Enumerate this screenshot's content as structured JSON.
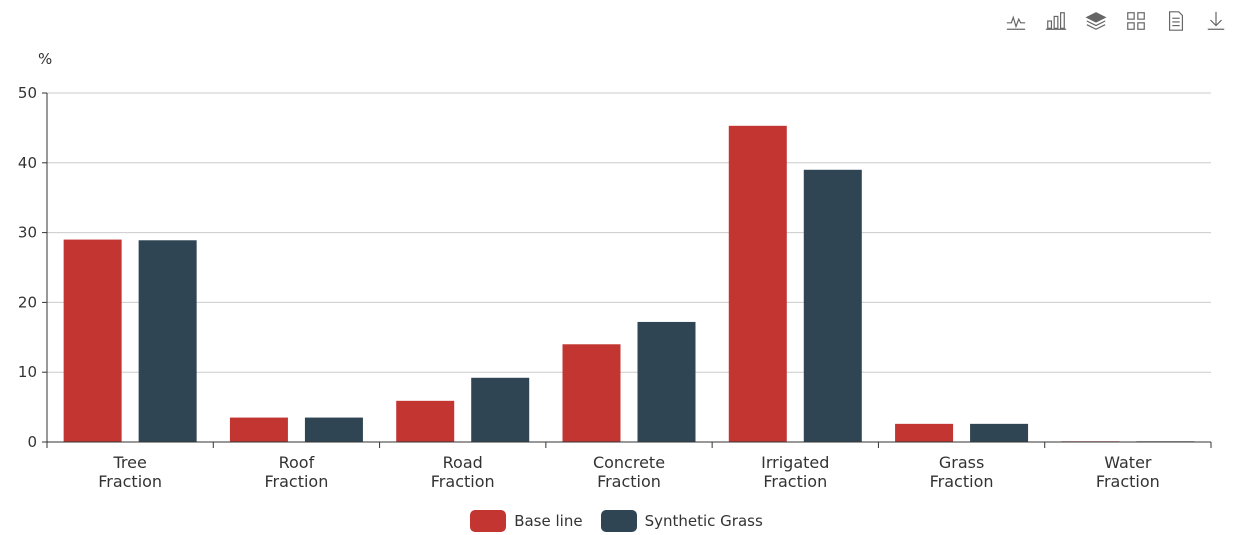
{
  "toolbox": {
    "icons": [
      "line-chart-icon",
      "bar-chart-icon",
      "stack-icon",
      "tiled-icon",
      "data-view-icon",
      "save-image-icon"
    ]
  },
  "colors": {
    "base_line": "#c23531",
    "synthetic_grass": "#2f4554",
    "axis": "#333333",
    "grid": "#cccccc"
  },
  "chart_data": {
    "type": "bar",
    "ylabel": "%",
    "ylim": [
      0,
      50
    ],
    "yticks": [
      0,
      10,
      20,
      30,
      40,
      50
    ],
    "categories": [
      [
        "Tree",
        "Fraction"
      ],
      [
        "Roof",
        "Fraction"
      ],
      [
        "Road",
        "Fraction"
      ],
      [
        "Concrete",
        "Fraction"
      ],
      [
        "Irrigated",
        "Fraction"
      ],
      [
        "Grass",
        "Fraction"
      ],
      [
        "Water",
        "Fraction"
      ]
    ],
    "series": [
      {
        "name": "Base line",
        "values": [
          29.0,
          3.5,
          5.9,
          14.0,
          45.3,
          2.6,
          0.1
        ]
      },
      {
        "name": "Synthetic Grass",
        "values": [
          28.9,
          3.5,
          9.2,
          17.2,
          39.0,
          2.6,
          0.1
        ]
      }
    ],
    "grid": true,
    "legend_position": "bottom-center"
  }
}
